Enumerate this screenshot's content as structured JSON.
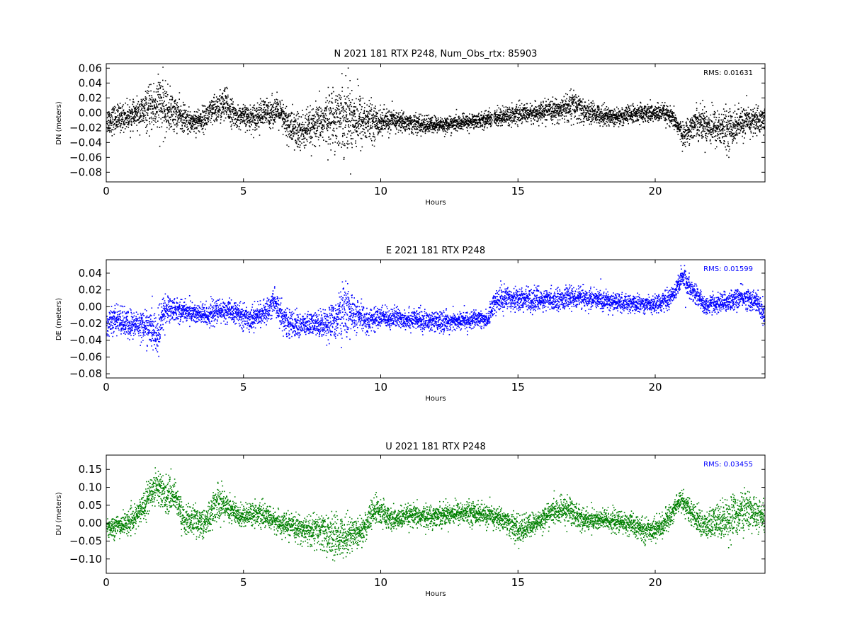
{
  "chart_data": [
    {
      "type": "scatter",
      "title": "N 2021 181 RTX  P248, Num_Obs_rtx: 85903",
      "xlabel": "Hours",
      "ylabel": "DN (meters)",
      "xlim": [
        0,
        24
      ],
      "ylim": [
        -0.093,
        0.066
      ],
      "xticks": [
        0,
        5,
        10,
        15,
        20
      ],
      "yticks": [
        0.06,
        0.04,
        0.02,
        0.0,
        -0.02,
        -0.04,
        -0.06,
        -0.08
      ],
      "ytick_labels": [
        "0.06",
        "0.04",
        "0.02",
        "0.00",
        "−0.02",
        "−0.04",
        "−0.06",
        "−0.08"
      ],
      "rms_label": "RMS:  0.01631",
      "color": "#000000",
      "grid": false,
      "data_gap_hours": [
        14.05,
        14.1
      ],
      "series": [
        {
          "x": [
            0,
            0.5,
            1.0,
            1.5,
            1.9,
            2.2,
            2.6,
            3.0,
            3.5,
            4.0,
            4.3,
            4.7,
            5.2,
            5.8,
            6.2,
            6.6,
            7.0,
            7.5,
            8.0,
            8.5,
            8.9,
            9.3,
            9.8,
            10.5,
            11.5,
            12.5,
            13.5,
            14.0,
            14.5,
            15.5,
            16.5,
            17.0,
            17.5,
            18.5,
            19.5,
            20.3,
            20.7,
            21.0,
            21.5,
            22.0,
            22.6,
            23.2,
            24.0
          ],
          "y": [
            -0.01,
            -0.006,
            -0.003,
            0.004,
            0.012,
            0.004,
            -0.002,
            -0.012,
            -0.008,
            0.006,
            0.012,
            -0.004,
            -0.006,
            0.0,
            0.004,
            -0.016,
            -0.026,
            -0.02,
            -0.008,
            -0.002,
            -0.004,
            -0.01,
            -0.012,
            -0.01,
            -0.016,
            -0.015,
            -0.01,
            -0.007,
            -0.003,
            0.0,
            0.004,
            0.01,
            0.001,
            -0.005,
            0.0,
            0.0,
            -0.01,
            -0.03,
            -0.01,
            -0.018,
            -0.022,
            -0.012,
            -0.008
          ],
          "spread": [
            0.018,
            0.018,
            0.016,
            0.026,
            0.04,
            0.03,
            0.02,
            0.016,
            0.016,
            0.02,
            0.024,
            0.014,
            0.016,
            0.02,
            0.018,
            0.024,
            0.028,
            0.024,
            0.032,
            0.044,
            0.046,
            0.034,
            0.02,
            0.014,
            0.012,
            0.01,
            0.01,
            0.012,
            0.012,
            0.012,
            0.014,
            0.022,
            0.014,
            0.012,
            0.012,
            0.012,
            0.012,
            0.014,
            0.02,
            0.024,
            0.026,
            0.02,
            0.018
          ]
        }
      ]
    },
    {
      "type": "scatter",
      "title": "E 2021 181 RTX  P248",
      "xlabel": "Hours",
      "ylabel": "DE (meters)",
      "xlim": [
        0,
        24
      ],
      "ylim": [
        -0.085,
        0.056
      ],
      "xticks": [
        0,
        5,
        10,
        15,
        20
      ],
      "yticks": [
        0.04,
        0.02,
        0.0,
        -0.02,
        -0.04,
        -0.06,
        -0.08
      ],
      "ytick_labels": [
        "0.04",
        "0.02",
        "0.00",
        "−0.02",
        "−0.04",
        "−0.06",
        "−0.08"
      ],
      "rms_label": "RMS:  0.01599",
      "color": "#0000ff",
      "grid": false,
      "series": [
        {
          "x": [
            0,
            0.4,
            0.8,
            1.2,
            1.6,
            1.9,
            2.05,
            2.4,
            3.0,
            3.6,
            4.2,
            4.6,
            5.2,
            5.8,
            6.1,
            6.5,
            7.0,
            7.6,
            8.2,
            8.7,
            9.0,
            9.5,
            10.0,
            11.0,
            12.0,
            13.0,
            13.9,
            14.1,
            14.6,
            15.0,
            16.0,
            17.0,
            18.0,
            19.0,
            20.0,
            20.5,
            21.0,
            21.3,
            21.8,
            22.5,
            23.2,
            23.7,
            24.0
          ],
          "y": [
            -0.02,
            -0.014,
            -0.022,
            -0.02,
            -0.026,
            -0.034,
            -0.004,
            -0.002,
            -0.006,
            -0.01,
            -0.004,
            -0.006,
            -0.014,
            -0.006,
            0.008,
            -0.018,
            -0.022,
            -0.02,
            -0.018,
            -0.002,
            -0.01,
            -0.016,
            -0.012,
            -0.014,
            -0.018,
            -0.016,
            -0.014,
            0.006,
            0.012,
            0.01,
            0.008,
            0.012,
            0.008,
            0.004,
            0.004,
            0.01,
            0.036,
            0.022,
            0.002,
            0.006,
            0.012,
            0.006,
            -0.014
          ]
        }
      ],
      "spread": [
        0.014,
        0.016,
        0.018,
        0.016,
        0.02,
        0.028,
        0.02,
        0.014,
        0.012,
        0.014,
        0.014,
        0.012,
        0.014,
        0.012,
        0.018,
        0.016,
        0.014,
        0.014,
        0.02,
        0.032,
        0.02,
        0.014,
        0.012,
        0.012,
        0.012,
        0.01,
        0.01,
        0.014,
        0.014,
        0.014,
        0.012,
        0.012,
        0.012,
        0.01,
        0.01,
        0.01,
        0.014,
        0.012,
        0.01,
        0.012,
        0.012,
        0.012,
        0.018
      ]
    },
    {
      "type": "scatter",
      "title": "U 2021 181 RTX  P248",
      "xlabel": "Hours",
      "ylabel": "DU (meters)",
      "xlim": [
        0,
        24
      ],
      "ylim": [
        -0.14,
        0.19
      ],
      "xticks": [
        0,
        5,
        10,
        15,
        20
      ],
      "yticks": [
        0.15,
        0.1,
        0.05,
        0.0,
        -0.05,
        -0.1
      ],
      "ytick_labels": [
        "0.15",
        "0.10",
        "0.05",
        "0.00",
        "−0.05",
        "−0.10"
      ],
      "rms_label": "RMS:  0.03455",
      "color": "#008000",
      "grid": false,
      "series": [
        {
          "x": [
            0,
            0.5,
            1.0,
            1.4,
            1.8,
            2.1,
            2.5,
            2.8,
            3.2,
            3.6,
            4.0,
            4.4,
            4.8,
            5.3,
            5.8,
            6.3,
            6.8,
            7.3,
            7.8,
            8.3,
            8.8,
            9.3,
            9.8,
            10.4,
            11.0,
            11.8,
            12.6,
            13.4,
            14.0,
            14.5,
            15.0,
            15.6,
            16.2,
            16.8,
            17.4,
            18.2,
            19.0,
            19.6,
            20.2,
            20.6,
            20.9,
            21.3,
            21.8,
            22.3,
            22.8,
            23.3,
            24.0
          ],
          "y": [
            -0.01,
            -0.005,
            0.01,
            0.06,
            0.11,
            0.08,
            0.08,
            0.01,
            0.01,
            0.0,
            0.06,
            0.05,
            0.02,
            0.03,
            0.02,
            0.0,
            -0.01,
            -0.02,
            -0.02,
            -0.04,
            -0.03,
            -0.02,
            0.04,
            0.01,
            0.02,
            0.02,
            0.03,
            0.03,
            0.02,
            0.01,
            -0.02,
            0.0,
            0.03,
            0.04,
            0.01,
            0.01,
            0.0,
            -0.02,
            -0.01,
            0.03,
            0.07,
            0.03,
            -0.01,
            0.01,
            0.02,
            0.04,
            0.01
          ]
        }
      ],
      "spread": [
        0.03,
        0.03,
        0.03,
        0.04,
        0.05,
        0.05,
        0.04,
        0.04,
        0.04,
        0.04,
        0.05,
        0.04,
        0.03,
        0.03,
        0.03,
        0.03,
        0.03,
        0.04,
        0.05,
        0.06,
        0.05,
        0.04,
        0.04,
        0.03,
        0.03,
        0.03,
        0.03,
        0.03,
        0.03,
        0.03,
        0.04,
        0.03,
        0.03,
        0.04,
        0.03,
        0.03,
        0.03,
        0.03,
        0.03,
        0.03,
        0.03,
        0.03,
        0.04,
        0.05,
        0.06,
        0.05,
        0.04
      ]
    }
  ]
}
